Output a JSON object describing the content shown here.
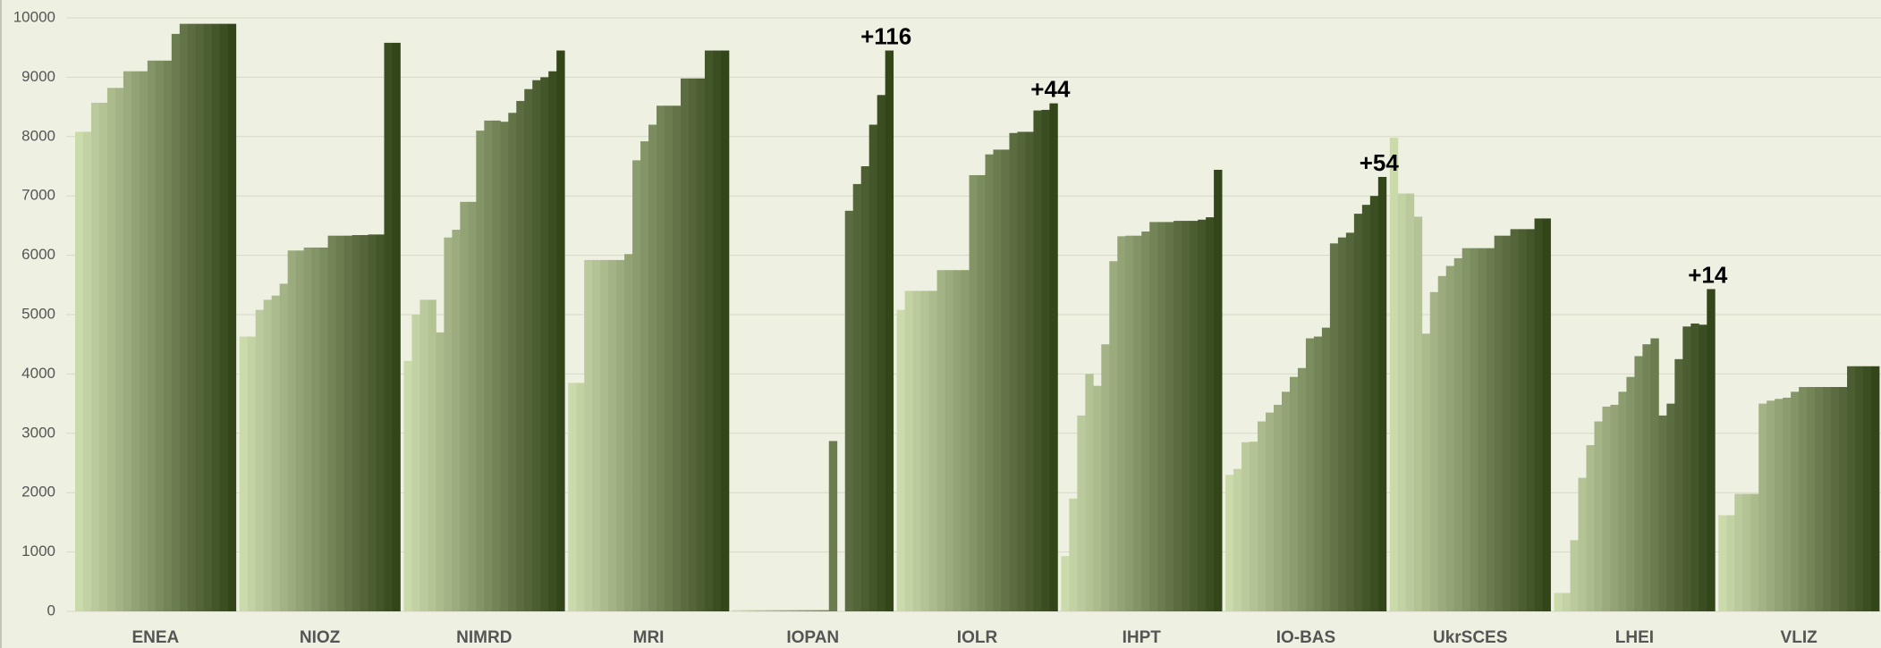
{
  "chart_data": {
    "type": "bar",
    "categories": [
      "ENEA",
      "NIOZ",
      "NIMRD",
      "MRI",
      "IOPAN",
      "IOLR",
      "IHPT",
      "IO-BAS",
      "UkrSCES",
      "LHEI",
      "VLIZ"
    ],
    "values": [
      [
        8080,
        8080,
        8570,
        8570,
        8820,
        8820,
        9100,
        9100,
        9100,
        9280,
        9280,
        9280,
        9730,
        9900,
        9900,
        9900,
        9900,
        9900,
        9900,
        9900
      ],
      [
        4630,
        4630,
        5080,
        5250,
        5320,
        5520,
        6080,
        6080,
        6130,
        6130,
        6130,
        6330,
        6330,
        6330,
        6340,
        6340,
        6350,
        6350,
        9580,
        9580
      ],
      [
        4220,
        5000,
        5250,
        5250,
        4700,
        6300,
        6430,
        6900,
        6900,
        8100,
        8270,
        8270,
        8250,
        8400,
        8600,
        8800,
        8950,
        9000,
        9100,
        9450
      ],
      [
        3850,
        3850,
        5920,
        5920,
        5920,
        5920,
        5920,
        6020,
        7600,
        7920,
        8200,
        8520,
        8520,
        8520,
        8980,
        8980,
        8980,
        9450,
        9450,
        9450
      ],
      [
        20,
        20,
        20,
        20,
        20,
        20,
        20,
        20,
        20,
        20,
        20,
        20,
        2870,
        0,
        6750,
        7200,
        7500,
        8200,
        8700,
        9450
      ],
      [
        5080,
        5400,
        5400,
        5400,
        5400,
        5750,
        5750,
        5750,
        5750,
        7350,
        7350,
        7700,
        7780,
        7780,
        8060,
        8080,
        8080,
        8440,
        8450,
        8560
      ],
      [
        930,
        1900,
        3300,
        4000,
        3800,
        4500,
        5900,
        6320,
        6330,
        6330,
        6400,
        6560,
        6560,
        6560,
        6580,
        6580,
        6580,
        6600,
        6640,
        7440
      ],
      [
        2300,
        2400,
        2850,
        2860,
        3200,
        3350,
        3480,
        3700,
        3950,
        4100,
        4600,
        4630,
        4780,
        6200,
        6300,
        6380,
        6700,
        6850,
        7000,
        7320
      ],
      [
        7980,
        7040,
        7040,
        6650,
        4680,
        5380,
        5650,
        5820,
        5950,
        6120,
        6120,
        6120,
        6120,
        6330,
        6330,
        6440,
        6440,
        6440,
        6620,
        6620
      ],
      [
        310,
        310,
        1200,
        2250,
        2800,
        3200,
        3450,
        3480,
        3700,
        3950,
        4300,
        4500,
        4600,
        3300,
        3500,
        4250,
        4800,
        4850,
        4830,
        5430
      ],
      [
        1620,
        1620,
        1980,
        1980,
        1980,
        3500,
        3550,
        3580,
        3600,
        3700,
        3780,
        3780,
        3780,
        3780,
        3780,
        3780,
        4130,
        4130,
        4130,
        4130
      ]
    ],
    "palette": [
      "#cbdaab",
      "#33461a"
    ],
    "annotations": [
      {
        "text": "+116",
        "category": "IOPAN"
      },
      {
        "text": "+44",
        "category": "IOLR"
      },
      {
        "text": "+54",
        "category": "IO-BAS"
      },
      {
        "text": "+14",
        "category": "LHEI"
      }
    ],
    "ylim": [
      0,
      10000
    ],
    "yticks": [
      0,
      1000,
      2000,
      3000,
      4000,
      5000,
      6000,
      7000,
      8000,
      9000,
      10000
    ],
    "grid": true
  }
}
